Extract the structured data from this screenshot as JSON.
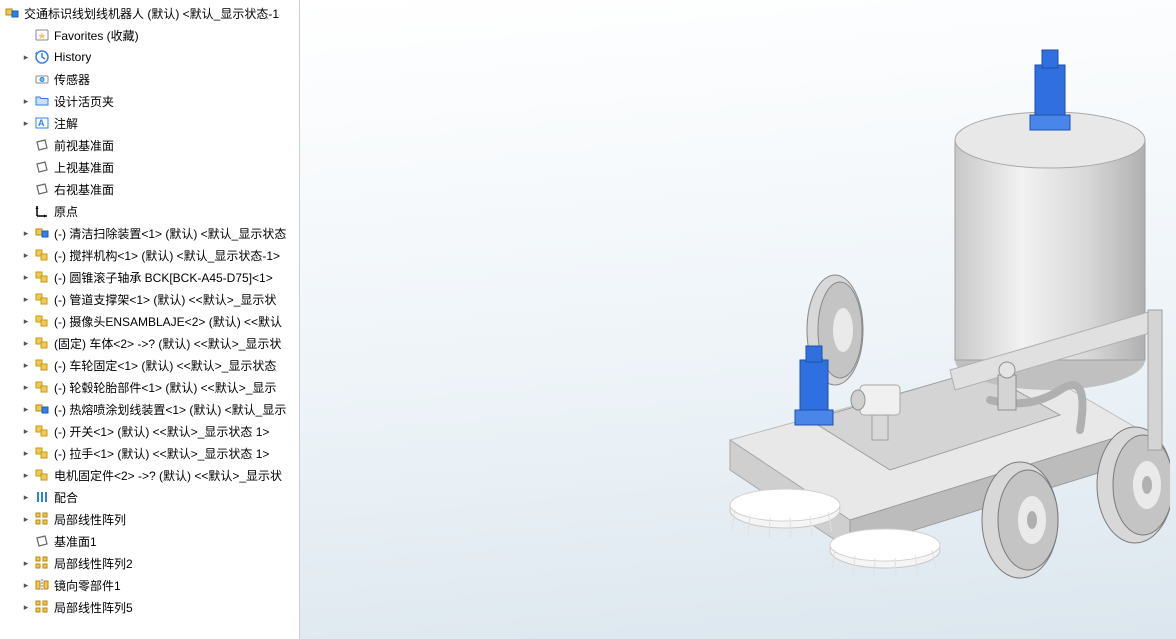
{
  "tree": {
    "root": "交通标识线划线机器人 (默认) <默认_显示状态-1",
    "items": [
      {
        "icon": "favorites",
        "label": "Favorites (收藏)",
        "expander": "",
        "indent": 1
      },
      {
        "icon": "history",
        "label": "History",
        "expander": "▸",
        "indent": 1
      },
      {
        "icon": "sensor",
        "label": "传感器",
        "expander": "",
        "indent": 1
      },
      {
        "icon": "folder",
        "label": "设计活页夹",
        "expander": "▸",
        "indent": 1
      },
      {
        "icon": "annotation",
        "label": "注解",
        "expander": "▸",
        "indent": 1
      },
      {
        "icon": "plane",
        "label": "前视基准面",
        "expander": "",
        "indent": 1
      },
      {
        "icon": "plane",
        "label": "上视基准面",
        "expander": "",
        "indent": 1
      },
      {
        "icon": "plane",
        "label": "右视基准面",
        "expander": "",
        "indent": 1
      },
      {
        "icon": "origin",
        "label": "原点",
        "expander": "",
        "indent": 1
      },
      {
        "icon": "assembly",
        "label": "(-) 清洁扫除装置<1> (默认) <默认_显示状态",
        "expander": "▸",
        "indent": 1
      },
      {
        "icon": "subassembly",
        "label": "(-) 搅拌机构<1> (默认) <默认_显示状态-1>",
        "expander": "▸",
        "indent": 1
      },
      {
        "icon": "subassembly",
        "label": "(-) 圆锥滚子轴承 BCK[BCK-A45-D75]<1>",
        "expander": "▸",
        "indent": 1
      },
      {
        "icon": "subassembly",
        "label": "(-) 管道支撑架<1> (默认) <<默认>_显示状",
        "expander": "▸",
        "indent": 1
      },
      {
        "icon": "subassembly",
        "label": "(-) 摄像头ENSAMBLAJE<2> (默认) <<默认",
        "expander": "▸",
        "indent": 1
      },
      {
        "icon": "subassembly",
        "label": "(固定) 车体<2> ->? (默认) <<默认>_显示状",
        "expander": "▸",
        "indent": 1
      },
      {
        "icon": "subassembly",
        "label": "(-) 车轮固定<1> (默认) <<默认>_显示状态",
        "expander": "▸",
        "indent": 1
      },
      {
        "icon": "subassembly",
        "label": "(-) 轮毂轮胎部件<1> (默认) <<默认>_显示",
        "expander": "▸",
        "indent": 1
      },
      {
        "icon": "assembly",
        "label": "(-) 热熔喷涂划线装置<1> (默认) <默认_显示",
        "expander": "▸",
        "indent": 1
      },
      {
        "icon": "subassembly",
        "label": "(-) 开关<1> (默认) <<默认>_显示状态 1>",
        "expander": "▸",
        "indent": 1
      },
      {
        "icon": "subassembly",
        "label": "(-) 拉手<1> (默认) <<默认>_显示状态 1>",
        "expander": "▸",
        "indent": 1
      },
      {
        "icon": "subassembly",
        "label": "电机固定件<2> ->? (默认) <<默认>_显示状",
        "expander": "▸",
        "indent": 1
      },
      {
        "icon": "mates",
        "label": "配合",
        "expander": "▸",
        "indent": 1
      },
      {
        "icon": "pattern",
        "label": "局部线性阵列",
        "expander": "▸",
        "indent": 1
      },
      {
        "icon": "plane",
        "label": "基准面1",
        "expander": "",
        "indent": 1
      },
      {
        "icon": "pattern",
        "label": "局部线性阵列2",
        "expander": "▸",
        "indent": 1
      },
      {
        "icon": "mirror",
        "label": "镜向零部件1",
        "expander": "▸",
        "indent": 1
      },
      {
        "icon": "pattern",
        "label": "局部线性阵列5",
        "expander": "▸",
        "indent": 1
      }
    ]
  },
  "icons": {
    "root_fill": "#f2c94c",
    "assembly_fill": "#2f80ed",
    "subassembly_fill": "#f2c94c",
    "plane_stroke": "#555555",
    "mates_fill": "#2f80ed",
    "pattern_fill": "#f2c94c",
    "origin_stroke": "#000000"
  },
  "model": {
    "tank_fill": "#dcdcdc",
    "tank_shade": "#b0b0b0",
    "motor_fill": "#2f6fe0",
    "motor_shade": "#1f4fa8",
    "body_fill": "#f2f2f2",
    "body_shade": "#cfcfcf",
    "wheel_fill": "#d8d8d8",
    "wheel_shade": "#9a9a9a",
    "brush_fill": "#f5f5f5"
  }
}
